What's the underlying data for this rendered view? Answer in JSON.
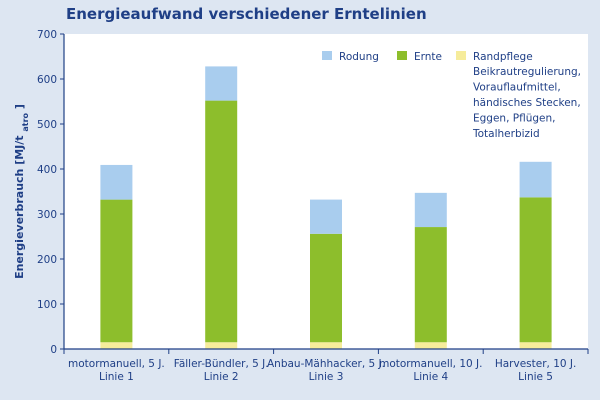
{
  "colors": {
    "background": "#dde6f2",
    "plot_background": "#ffffff",
    "axis": "#1f3f86",
    "text": "#1f3f86",
    "rodung": "#a9cdee",
    "ernte": "#8dbe2c",
    "randpflege": "#f6ec9b"
  },
  "chart_data": {
    "type": "bar",
    "stacked": true,
    "title": "Energieaufwand verschiedener Erntelinien",
    "ylabel_main": "Energieverbrauch [MJ/t",
    "ylabel_sub": "atro",
    "ylabel_close": "]",
    "ylim": [
      0,
      700
    ],
    "yticks": [
      0,
      100,
      200,
      300,
      400,
      500,
      600,
      700
    ],
    "grid": false,
    "legend_position": "top-right",
    "categories": [
      [
        "motormanuell, 5 J.",
        "Linie 1"
      ],
      [
        "Fäller-Bündler, 5 J.",
        "Linie 2"
      ],
      [
        "Anbau-Mähhacker, 5 J.",
        "Linie 3"
      ],
      [
        "motormanuell, 10 J.",
        "Linie 4"
      ],
      [
        "Harvester, 10 J.",
        "Linie 5"
      ]
    ],
    "series": [
      {
        "name": "Randpflege",
        "color_key": "randpflege",
        "values": [
          15,
          15,
          15,
          15,
          15
        ]
      },
      {
        "name": "Ernte",
        "color_key": "ernte",
        "values": [
          317,
          537,
          241,
          256,
          322
        ]
      },
      {
        "name": "Rodung",
        "color_key": "rodung",
        "values": [
          77,
          76,
          76,
          76,
          79
        ]
      }
    ],
    "legend": [
      {
        "name": "Rodung",
        "color_key": "rodung"
      },
      {
        "name": "Ernte",
        "color_key": "ernte"
      },
      {
        "name": "Randpflege",
        "color_key": "randpflege"
      }
    ],
    "annotation_lines": [
      "Beikrautregulierung,",
      "Vorauflaufmittel,",
      "händisches Stecken,",
      "Eggen, Pflügen,",
      "Totalherbizid"
    ]
  }
}
